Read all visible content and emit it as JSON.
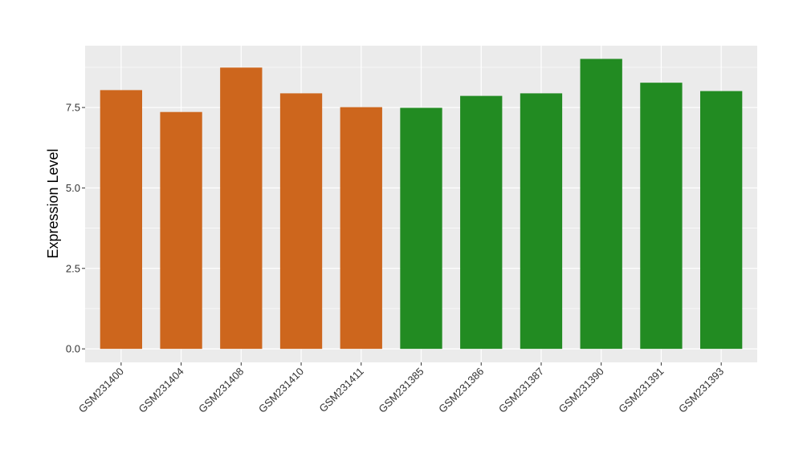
{
  "chart_data": {
    "type": "bar",
    "title": "",
    "xlabel": "",
    "ylabel": "Expression Level",
    "ylim": [
      -0.42,
      9.42
    ],
    "yticks": [
      0.0,
      2.5,
      5.0,
      7.5
    ],
    "ytick_labels": [
      "0.0",
      "2.5",
      "5.0",
      "7.5"
    ],
    "grid": true,
    "legend": "none",
    "categories": [
      "GSM231400",
      "GSM231404",
      "GSM231408",
      "GSM231410",
      "GSM231411",
      "GSM231385",
      "GSM231386",
      "GSM231387",
      "GSM231390",
      "GSM231391",
      "GSM231393"
    ],
    "values": [
      8.04,
      7.36,
      8.74,
      7.94,
      7.51,
      7.49,
      7.86,
      7.94,
      9.01,
      8.27,
      8.01
    ],
    "bar_colors": [
      "#cd661d",
      "#cd661d",
      "#cd661d",
      "#cd661d",
      "#cd661d",
      "#228b22",
      "#228b22",
      "#228b22",
      "#228b22",
      "#228b22",
      "#228b22"
    ],
    "panel_color": "#ebebeb",
    "grid_color": "#ffffff"
  }
}
